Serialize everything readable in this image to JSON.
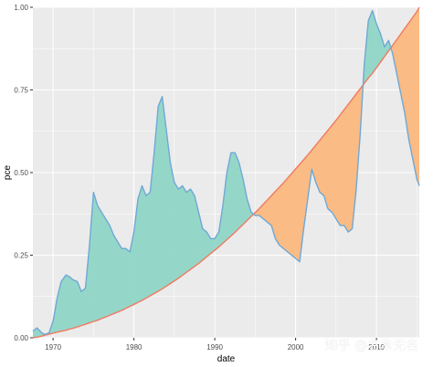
{
  "chart_data": {
    "type": "area",
    "xlabel": "date",
    "ylabel": "pce",
    "x_ticks": [
      1970,
      1980,
      1990,
      2000,
      2010
    ],
    "y_ticks": [
      "0.00",
      "0.25",
      "0.50",
      "0.75",
      "1.00"
    ],
    "xlim": [
      1967.5,
      2015.3
    ],
    "ylim": [
      0,
      1
    ],
    "grid": true,
    "legend": "none",
    "colors": {
      "panel": "#ebebeb",
      "grid": "#ffffff",
      "series_a_line": "#6fa8d6",
      "series_b_line": "#f07a62",
      "fill_a_above": "#8fd6c6",
      "fill_b_above": "#fbb87e"
    },
    "series": [
      {
        "key": "series_a",
        "x": [
          1967.5,
          1968.0,
          1968.6,
          1969.0,
          1969.5,
          1970.0,
          1970.5,
          1971.0,
          1971.6,
          1972.0,
          1972.5,
          1973.0,
          1973.5,
          1974.0,
          1974.5,
          1975.0,
          1975.5,
          1976.0,
          1976.5,
          1977.0,
          1977.5,
          1978.0,
          1978.5,
          1979.0,
          1979.5,
          1980.0,
          1980.5,
          1981.0,
          1981.5,
          1982.0,
          1982.5,
          1983.0,
          1983.5,
          1984.0,
          1984.5,
          1985.0,
          1985.5,
          1986.0,
          1986.5,
          1987.0,
          1987.5,
          1988.0,
          1988.5,
          1989.0,
          1989.5,
          1990.0,
          1990.5,
          1991.0,
          1991.5,
          1992.0,
          1992.5,
          1993.0,
          1993.5,
          1994.0,
          1994.5,
          1995.0,
          1995.5,
          1996.0,
          1996.5,
          1997.0,
          1997.5,
          1998.0,
          1998.5,
          1999.0,
          1999.5,
          2000.0,
          2000.5,
          2001.0,
          2001.5,
          2002.0,
          2002.5,
          2003.0,
          2003.5,
          2004.0,
          2004.5,
          2005.0,
          2005.5,
          2006.0,
          2006.5,
          2007.0,
          2007.5,
          2008.0,
          2008.5,
          2009.0,
          2009.5,
          2010.0,
          2010.5,
          2011.0,
          2011.5,
          2012.0,
          2012.5,
          2013.0,
          2013.5,
          2014.0,
          2014.5,
          2015.0,
          2015.3
        ],
        "values": [
          0.02,
          0.03,
          0.015,
          0.01,
          0.015,
          0.05,
          0.12,
          0.17,
          0.19,
          0.185,
          0.175,
          0.17,
          0.14,
          0.15,
          0.28,
          0.44,
          0.4,
          0.38,
          0.36,
          0.34,
          0.31,
          0.29,
          0.27,
          0.27,
          0.26,
          0.32,
          0.42,
          0.46,
          0.43,
          0.44,
          0.56,
          0.7,
          0.73,
          0.63,
          0.53,
          0.47,
          0.45,
          0.46,
          0.44,
          0.45,
          0.43,
          0.38,
          0.33,
          0.32,
          0.3,
          0.3,
          0.32,
          0.4,
          0.5,
          0.56,
          0.56,
          0.53,
          0.48,
          0.42,
          0.38,
          0.37,
          0.37,
          0.36,
          0.35,
          0.34,
          0.3,
          0.28,
          0.27,
          0.26,
          0.25,
          0.24,
          0.23,
          0.33,
          0.42,
          0.51,
          0.47,
          0.44,
          0.43,
          0.39,
          0.38,
          0.36,
          0.34,
          0.34,
          0.32,
          0.33,
          0.45,
          0.62,
          0.83,
          0.96,
          0.99,
          0.95,
          0.92,
          0.88,
          0.9,
          0.86,
          0.8,
          0.74,
          0.68,
          0.6,
          0.54,
          0.48,
          0.46
        ]
      },
      {
        "key": "series_b",
        "x": [
          1967.5,
          1968.0,
          1968.6,
          1969.0,
          1969.5,
          1970.0,
          1970.5,
          1971.0,
          1971.6,
          1972.0,
          1972.5,
          1973.0,
          1973.5,
          1974.0,
          1974.5,
          1975.0,
          1975.5,
          1976.0,
          1976.5,
          1977.0,
          1977.5,
          1978.0,
          1978.5,
          1979.0,
          1979.5,
          1980.0,
          1980.5,
          1981.0,
          1981.5,
          1982.0,
          1982.5,
          1983.0,
          1983.5,
          1984.0,
          1984.5,
          1985.0,
          1985.5,
          1986.0,
          1986.5,
          1987.0,
          1987.5,
          1988.0,
          1988.5,
          1989.0,
          1989.5,
          1990.0,
          1990.5,
          1991.0,
          1991.5,
          1992.0,
          1992.5,
          1993.0,
          1993.5,
          1994.0,
          1994.5,
          1995.0,
          1995.5,
          1996.0,
          1996.5,
          1997.0,
          1997.5,
          1998.0,
          1998.5,
          1999.0,
          1999.5,
          2000.0,
          2000.5,
          2001.0,
          2001.5,
          2002.0,
          2002.5,
          2003.0,
          2003.5,
          2004.0,
          2004.5,
          2005.0,
          2005.5,
          2006.0,
          2006.5,
          2007.0,
          2007.5,
          2008.0,
          2008.5,
          2009.0,
          2009.5,
          2010.0,
          2010.5,
          2011.0,
          2011.5,
          2012.0,
          2012.5,
          2013.0,
          2013.5,
          2014.0,
          2014.5,
          2015.0,
          2015.3
        ],
        "values": [
          0.0,
          0.002,
          0.005,
          0.008,
          0.011,
          0.014,
          0.017,
          0.02,
          0.023,
          0.026,
          0.029,
          0.033,
          0.037,
          0.041,
          0.045,
          0.049,
          0.053,
          0.058,
          0.063,
          0.068,
          0.073,
          0.078,
          0.083,
          0.089,
          0.095,
          0.101,
          0.107,
          0.113,
          0.12,
          0.127,
          0.134,
          0.141,
          0.148,
          0.156,
          0.164,
          0.172,
          0.18,
          0.189,
          0.198,
          0.207,
          0.216,
          0.225,
          0.235,
          0.245,
          0.255,
          0.265,
          0.275,
          0.286,
          0.297,
          0.308,
          0.319,
          0.331,
          0.343,
          0.355,
          0.367,
          0.379,
          0.391,
          0.404,
          0.417,
          0.43,
          0.443,
          0.456,
          0.469,
          0.483,
          0.497,
          0.511,
          0.525,
          0.539,
          0.553,
          0.568,
          0.583,
          0.598,
          0.613,
          0.628,
          0.643,
          0.658,
          0.674,
          0.69,
          0.706,
          0.722,
          0.738,
          0.754,
          0.77,
          0.786,
          0.8,
          0.817,
          0.834,
          0.851,
          0.868,
          0.885,
          0.902,
          0.919,
          0.936,
          0.953,
          0.97,
          0.987,
          1.0
        ]
      }
    ]
  },
  "watermark": "知乎 @名本无名"
}
